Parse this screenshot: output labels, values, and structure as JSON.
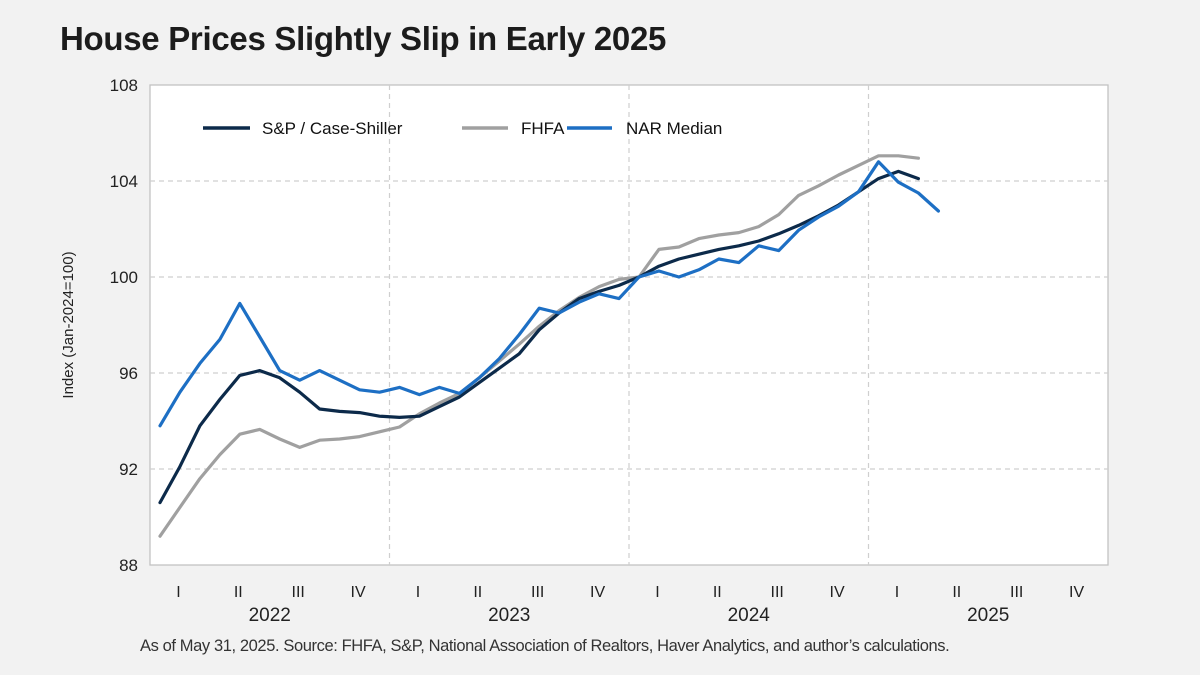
{
  "title": "House Prices Slightly Slip in Early 2025",
  "source": "As of May 31, 2025. Source: FHFA, S&P, National Association of Realtors, Haver Analytics, and author’s calculations.",
  "chart_data": {
    "type": "line",
    "title": "House Prices Slightly Slip in Early 2025",
    "ylabel": "Index (Jan-2024=100)",
    "xlabel": "",
    "ylim": [
      88,
      108
    ],
    "yticks": [
      88,
      92,
      96,
      100,
      104,
      108
    ],
    "x_quarter_labels": [
      "I",
      "II",
      "III",
      "IV",
      "I",
      "II",
      "III",
      "IV",
      "I",
      "II",
      "III",
      "IV",
      "I",
      "II",
      "III",
      "IV"
    ],
    "x_year_labels": [
      "2022",
      "2023",
      "2024",
      "2025"
    ],
    "xlim": [
      "2022-01",
      "2025-12"
    ],
    "grid": true,
    "legend_position": "top-left",
    "x": [
      "2022-01",
      "2022-02",
      "2022-03",
      "2022-04",
      "2022-05",
      "2022-06",
      "2022-07",
      "2022-08",
      "2022-09",
      "2022-10",
      "2022-11",
      "2022-12",
      "2023-01",
      "2023-02",
      "2023-03",
      "2023-04",
      "2023-05",
      "2023-06",
      "2023-07",
      "2023-08",
      "2023-09",
      "2023-10",
      "2023-11",
      "2023-12",
      "2024-01",
      "2024-02",
      "2024-03",
      "2024-04",
      "2024-05",
      "2024-06",
      "2024-07",
      "2024-08",
      "2024-09",
      "2024-10",
      "2024-11",
      "2024-12",
      "2025-01",
      "2025-02",
      "2025-03",
      "2025-04"
    ],
    "series": [
      {
        "name": "S&P / Case-Shiller",
        "color": "#0c2a4a",
        "values": [
          90.6,
          92.1,
          93.8,
          94.9,
          95.9,
          96.1,
          95.8,
          95.2,
          94.5,
          94.4,
          94.35,
          94.2,
          94.15,
          94.2,
          94.6,
          95.0,
          95.6,
          96.2,
          96.8,
          97.8,
          98.5,
          99.1,
          99.4,
          99.65,
          100.0,
          100.45,
          100.75,
          100.95,
          101.15,
          101.3,
          101.5,
          101.8,
          102.15,
          102.55,
          103.0,
          103.55,
          104.1,
          104.4,
          104.1,
          null
        ]
      },
      {
        "name": "FHFA",
        "color": "#a0a0a0",
        "values": [
          89.2,
          90.4,
          91.6,
          92.6,
          93.45,
          93.65,
          93.25,
          92.9,
          93.2,
          93.25,
          93.35,
          93.55,
          93.75,
          94.3,
          94.75,
          95.15,
          95.8,
          96.5,
          97.2,
          97.95,
          98.6,
          99.15,
          99.6,
          99.9,
          100.0,
          101.15,
          101.25,
          101.6,
          101.75,
          101.85,
          102.1,
          102.6,
          103.4,
          103.8,
          104.25,
          104.65,
          105.05,
          105.05,
          104.95,
          null
        ]
      },
      {
        "name": "NAR Median",
        "color": "#1d6fc4",
        "values": [
          93.8,
          95.2,
          96.4,
          97.4,
          98.9,
          97.5,
          96.1,
          95.7,
          96.1,
          95.7,
          95.3,
          95.2,
          95.4,
          95.1,
          95.4,
          95.15,
          95.8,
          96.6,
          97.6,
          98.7,
          98.5,
          98.95,
          99.3,
          99.1,
          100.0,
          100.25,
          100.0,
          100.3,
          100.75,
          100.6,
          101.3,
          101.1,
          101.95,
          102.5,
          102.95,
          103.55,
          104.8,
          103.95,
          103.5,
          102.75
        ]
      }
    ]
  }
}
